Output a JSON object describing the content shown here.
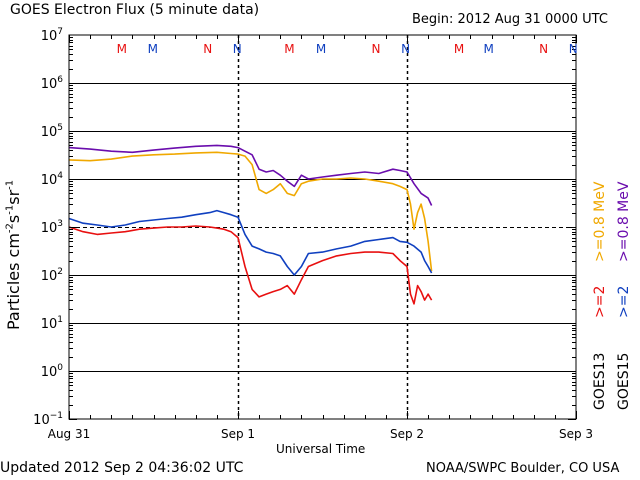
{
  "header": {
    "title": "GOES Electron Flux (5 minute data)",
    "begin": "Begin: 2012 Aug 31 0000 UTC"
  },
  "footer": {
    "updated": "Updated 2012 Sep  2 04:36:02 UTC",
    "source": "NOAA/SWPC Boulder, CO USA"
  },
  "chart_data": {
    "type": "line",
    "title": "GOES Electron Flux (5 minute data)",
    "xlabel": "Universal Time",
    "ylabel": "Particles cm-2s-1sr-1",
    "yscale": "log",
    "ylim": [
      0.1,
      10000000
    ],
    "xlim_hours": [
      0,
      72
    ],
    "x_ticks": [
      {
        "hour": 0,
        "label": "Aug 31"
      },
      {
        "hour": 24,
        "label": "Sep 1"
      },
      {
        "hour": 48,
        "label": "Sep 2"
      },
      {
        "hour": 72,
        "label": "Sep 3"
      }
    ],
    "y_ticks": [
      {
        "value": 10000000,
        "exp": "7"
      },
      {
        "value": 1000000,
        "exp": "6"
      },
      {
        "value": 100000,
        "exp": "5"
      },
      {
        "value": 10000,
        "exp": "4"
      },
      {
        "value": 1000,
        "exp": "3"
      },
      {
        "value": 100,
        "exp": "2"
      },
      {
        "value": 10,
        "exp": "1"
      },
      {
        "value": 1,
        "exp": "0"
      },
      {
        "value": 0.1,
        "exp": "−1"
      }
    ],
    "threshold": 1000,
    "legend": [
      {
        "sat": "GOES13",
        "label": ">=0.8 MeV",
        "color": "#f0a800"
      },
      {
        "sat": "GOES15",
        "label": ">=0.8 MeV",
        "color": "#6a0dad"
      },
      {
        "sat": "GOES13",
        "label": ">=2",
        "color": "#e81010"
      },
      {
        "sat": "GOES15",
        "label": ">=2",
        "color": "#1040c0"
      }
    ],
    "markers": [
      {
        "hour": 7.5,
        "letter": "M",
        "color": "#e81010"
      },
      {
        "hour": 11.9,
        "letter": "M",
        "color": "#1040c0"
      },
      {
        "hour": 19.7,
        "letter": "N",
        "color": "#e81010"
      },
      {
        "hour": 23.9,
        "letter": "N",
        "color": "#1040c0"
      },
      {
        "hour": 31.3,
        "letter": "M",
        "color": "#e81010"
      },
      {
        "hour": 35.8,
        "letter": "M",
        "color": "#1040c0"
      },
      {
        "hour": 43.6,
        "letter": "N",
        "color": "#e81010"
      },
      {
        "hour": 47.8,
        "letter": "N",
        "color": "#1040c0"
      },
      {
        "hour": 55.4,
        "letter": "M",
        "color": "#e81010"
      },
      {
        "hour": 59.6,
        "letter": "M",
        "color": "#1040c0"
      },
      {
        "hour": 67.4,
        "letter": "N",
        "color": "#e81010"
      },
      {
        "hour": 71.6,
        "letter": "N",
        "color": "#1040c0"
      }
    ],
    "series": [
      {
        "name": "GOES15 >=0.8 MeV",
        "color": "#6a0dad",
        "x": [
          0,
          3,
          6,
          9,
          12,
          15,
          18,
          21,
          23,
          24,
          25,
          26,
          27,
          28,
          29,
          30,
          31,
          32,
          33,
          34,
          36,
          38,
          40,
          42,
          44,
          46,
          47,
          48,
          49,
          50,
          51,
          51.5
        ],
        "y": [
          45000,
          42000,
          38000,
          36000,
          40000,
          44000,
          48000,
          50000,
          48000,
          45000,
          38000,
          32000,
          16000,
          14000,
          15000,
          12000,
          9000,
          7000,
          12000,
          10000,
          11000,
          12000,
          13000,
          14000,
          13000,
          16000,
          15000,
          14000,
          8000,
          5000,
          4000,
          2800
        ]
      },
      {
        "name": "GOES13 >=0.8 MeV",
        "color": "#f0a800",
        "x": [
          0,
          3,
          6,
          9,
          12,
          15,
          18,
          21,
          23,
          24,
          25,
          26,
          27,
          28,
          29,
          30,
          31,
          32,
          33,
          34,
          36,
          38,
          40,
          42,
          44,
          46,
          47,
          48,
          48.5,
          49,
          49.5,
          50,
          50.5,
          51,
          51.5
        ],
        "y": [
          25000,
          24000,
          26000,
          30000,
          32000,
          33000,
          35000,
          36000,
          34000,
          33000,
          30000,
          20000,
          6000,
          5000,
          6000,
          8000,
          5000,
          4500,
          8000,
          9000,
          10000,
          10000,
          10500,
          10000,
          9000,
          8000,
          7000,
          6000,
          3000,
          900,
          2000,
          3000,
          1500,
          500,
          120
        ]
      },
      {
        "name": "GOES15 >=2",
        "color": "#1040c0",
        "x": [
          0,
          2,
          4,
          6,
          8,
          10,
          12,
          14,
          16,
          18,
          20,
          21,
          22,
          23,
          24,
          25,
          26,
          27,
          28,
          29,
          30,
          31,
          32,
          33,
          34,
          36,
          38,
          40,
          42,
          44,
          46,
          47,
          48,
          49,
          50,
          50.5,
          51,
          51.5
        ],
        "y": [
          1500,
          1200,
          1100,
          1000,
          1100,
          1300,
          1400,
          1500,
          1600,
          1800,
          2000,
          2200,
          2000,
          1800,
          1600,
          700,
          400,
          350,
          300,
          280,
          250,
          150,
          100,
          150,
          280,
          300,
          350,
          400,
          500,
          550,
          600,
          500,
          480,
          400,
          300,
          200,
          150,
          110
        ]
      },
      {
        "name": "GOES13 >=2",
        "color": "#e81010",
        "x": [
          0,
          2,
          4,
          6,
          8,
          10,
          12,
          14,
          16,
          18,
          20,
          21,
          22,
          23,
          24,
          25,
          26,
          27,
          28,
          29,
          30,
          31,
          32,
          33,
          34,
          36,
          38,
          40,
          42,
          44,
          46,
          47,
          48,
          48.5,
          49,
          49.5,
          50,
          50.5,
          51,
          51.5
        ],
        "y": [
          1000,
          800,
          700,
          750,
          800,
          900,
          950,
          1000,
          1000,
          1050,
          1000,
          950,
          900,
          800,
          600,
          150,
          50,
          35,
          40,
          45,
          50,
          60,
          40,
          80,
          150,
          200,
          250,
          280,
          300,
          300,
          280,
          200,
          150,
          40,
          25,
          60,
          45,
          30,
          40,
          30
        ]
      }
    ]
  }
}
